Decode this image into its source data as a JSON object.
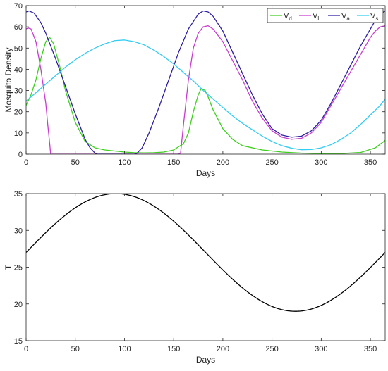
{
  "chart_data": [
    {
      "type": "line",
      "xlabel": "Days",
      "ylabel": "Mosquito Density",
      "xlim": [
        0,
        365
      ],
      "ylim": [
        0,
        70
      ],
      "xticks": [
        0,
        50,
        100,
        150,
        200,
        250,
        300,
        350
      ],
      "yticks": [
        0,
        10,
        20,
        30,
        40,
        50,
        60,
        70
      ],
      "grid": false,
      "legend_position": "top-right",
      "series": [
        {
          "name": "V",
          "sub": "d",
          "color": "#3ecf1e",
          "x": [
            0,
            5,
            10,
            15,
            20,
            24,
            28,
            35,
            40,
            50,
            60,
            70,
            80,
            90,
            100,
            110,
            120,
            130,
            140,
            150,
            160,
            165,
            170,
            175,
            178,
            182,
            185,
            190,
            200,
            210,
            220,
            240,
            260,
            280,
            300,
            320,
            340,
            355,
            365
          ],
          "y": [
            23,
            28,
            35,
            45,
            53,
            55,
            52,
            40,
            30,
            15,
            6,
            3,
            2,
            1.5,
            1,
            0.7,
            0.6,
            0.7,
            1,
            2,
            5,
            10,
            20,
            28,
            31,
            30,
            27,
            21,
            12,
            7,
            4,
            2,
            1,
            0.5,
            0.3,
            0.3,
            0.8,
            3,
            6.5
          ]
        },
        {
          "name": "V",
          "sub": "l",
          "color": "#c93bd1",
          "x": [
            0,
            2,
            5,
            10,
            15,
            20,
            22,
            24,
            25,
            60,
            100,
            140,
            155,
            157,
            160,
            165,
            170,
            175,
            180,
            185,
            190,
            200,
            210,
            220,
            230,
            240,
            250,
            260,
            270,
            280,
            290,
            300,
            310,
            320,
            330,
            340,
            350,
            355,
            360,
            365
          ],
          "y": [
            59,
            59.5,
            59,
            53,
            40,
            24,
            14,
            5,
            0,
            0,
            0,
            0,
            0,
            0.5,
            14,
            35,
            50,
            57,
            60,
            60.5,
            59,
            53,
            44,
            35,
            25,
            17,
            11,
            8,
            7,
            7.5,
            10,
            15,
            23,
            31,
            39,
            47,
            55,
            58,
            60,
            60.5
          ]
        },
        {
          "name": "V",
          "sub": "a",
          "color": "#2c1ea0",
          "x": [
            0,
            3,
            8,
            15,
            20,
            30,
            40,
            50,
            60,
            65,
            70,
            72,
            100,
            110,
            113,
            118,
            125,
            135,
            145,
            155,
            165,
            175,
            180,
            185,
            190,
            200,
            210,
            220,
            230,
            240,
            250,
            260,
            270,
            280,
            290,
            300,
            310,
            320,
            330,
            340,
            350,
            355,
            360,
            365
          ],
          "y": [
            67,
            67.5,
            66.5,
            62,
            57,
            45,
            32,
            19,
            7,
            3,
            0.5,
            0,
            0,
            0,
            0.5,
            3,
            10,
            22,
            35,
            48,
            59,
            66,
            67.5,
            67,
            65,
            58,
            48,
            38,
            28,
            19,
            12,
            9,
            8,
            8.5,
            11,
            16,
            24,
            33,
            42,
            51,
            59,
            63,
            66,
            67.5
          ]
        },
        {
          "name": "V",
          "sub": "s",
          "color": "#33ccf2",
          "x": [
            0,
            10,
            20,
            30,
            40,
            50,
            60,
            70,
            80,
            90,
            100,
            110,
            120,
            130,
            140,
            150,
            160,
            170,
            180,
            190,
            200,
            210,
            220,
            230,
            240,
            250,
            260,
            270,
            280,
            290,
            300,
            310,
            320,
            330,
            340,
            350,
            360,
            365
          ],
          "y": [
            25,
            29,
            33,
            37,
            41,
            44.5,
            47.5,
            50,
            52,
            53.5,
            53.8,
            53,
            51.5,
            49,
            46,
            42.5,
            38.5,
            34.5,
            30,
            26,
            22,
            18,
            14.5,
            11.5,
            8.5,
            6,
            4,
            2.8,
            2.1,
            2.2,
            3,
            4.5,
            7,
            10,
            14,
            18.5,
            23,
            26
          ]
        }
      ]
    },
    {
      "type": "line",
      "xlabel": "Days",
      "ylabel": "T",
      "xlim": [
        0,
        365
      ],
      "ylim": [
        15,
        35
      ],
      "xticks": [
        0,
        50,
        100,
        150,
        200,
        250,
        300,
        350
      ],
      "yticks": [
        15,
        20,
        25,
        30,
        35
      ],
      "grid": false,
      "series": [
        {
          "color": "#000000",
          "function": "27 + 8*sin(2*pi*x/365)"
        }
      ]
    }
  ]
}
